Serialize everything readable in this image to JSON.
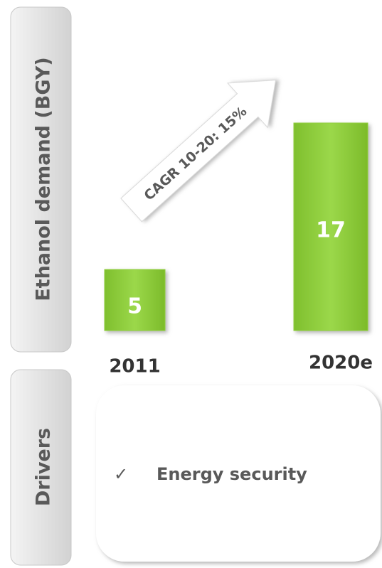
{
  "chart_data": {
    "type": "bar",
    "ylabel": "Ethanol demand (BGY)",
    "categories": [
      "2011",
      "2020e"
    ],
    "values": [
      5,
      17
    ],
    "color": "#8fce3c",
    "annotation": "CAGR 10-20: 15%"
  },
  "drivers": {
    "label": "Drivers",
    "bullet": "✓",
    "items": [
      "Energy security"
    ]
  }
}
